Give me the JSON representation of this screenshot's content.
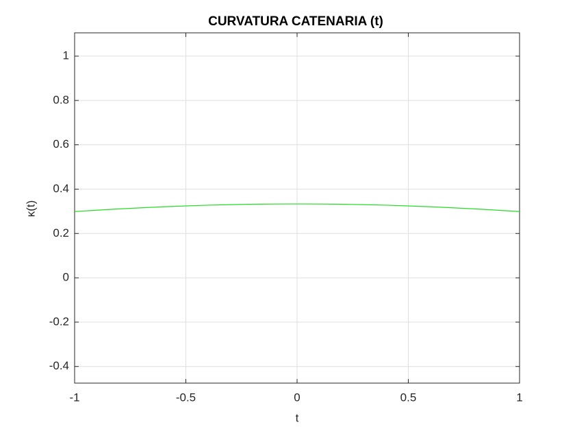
{
  "chart_data": {
    "type": "line",
    "title": "CURVATURA CATENARIA (t)",
    "x_label": "t",
    "y_label": "κ(t)",
    "x": [
      -1,
      -0.9,
      -0.8,
      -0.7,
      -0.6,
      -0.5,
      -0.4,
      -0.3,
      -0.2,
      -0.1,
      0,
      0.1,
      0.2,
      0.3,
      0.4,
      0.5,
      0.6,
      0.7,
      0.8,
      0.9,
      1
    ],
    "series": [
      {
        "color": "#22dd22",
        "values": [
          0.2989,
          0.305,
          0.3107,
          0.3158,
          0.3204,
          0.3243,
          0.3275,
          0.33,
          0.3319,
          0.333,
          0.3333,
          0.333,
          0.3319,
          0.33,
          0.3275,
          0.3243,
          0.3204,
          0.3158,
          0.3107,
          0.305,
          0.2989
        ]
      }
    ],
    "xlim": [
      -1,
      1
    ],
    "xticks": [
      -1,
      -0.5,
      0,
      0.5,
      1
    ],
    "ylim": [
      -0.475,
      1.105
    ],
    "yticks": [
      -0.4,
      -0.2,
      0,
      0.2,
      0.4,
      0.6,
      0.8,
      1
    ],
    "grid": true
  }
}
